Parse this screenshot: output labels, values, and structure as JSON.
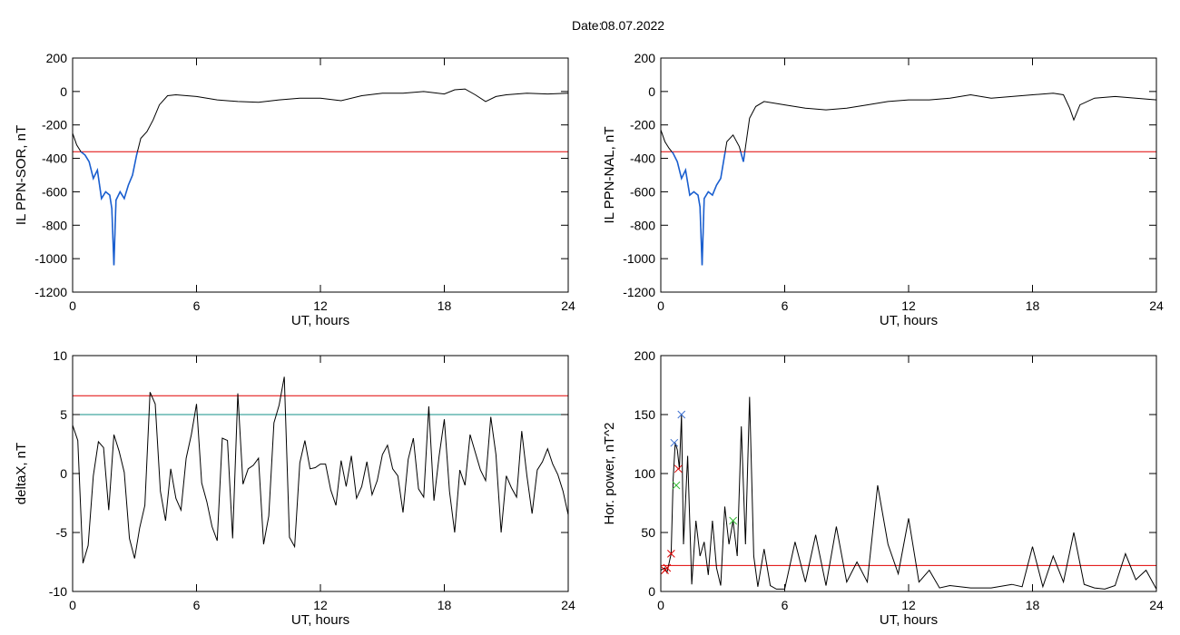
{
  "header": {
    "title_label": "Date:",
    "title_date": "08.07.2022"
  },
  "colors": {
    "axis": "#000000",
    "trace": "#000000",
    "highlight": "#1a5fd0",
    "threshold_red": "#e00000",
    "threshold_teal": "#13928a",
    "marker_blue": "#3b6fd0",
    "marker_green": "#33bb33",
    "marker_red": "#cc2222"
  },
  "chart_data": [
    {
      "id": "il-sor",
      "type": "line",
      "title": "",
      "xlabel": "UT, hours",
      "ylabel": "IL PPN-SOR, nT",
      "xlim": [
        0,
        24
      ],
      "ylim": [
        -1200,
        200
      ],
      "xticks": [
        0,
        6,
        12,
        18,
        24
      ],
      "yticks": [
        200,
        0,
        -200,
        -400,
        -600,
        -800,
        -1000,
        -1200
      ],
      "thresholds": [
        {
          "y": -360,
          "color": "red"
        }
      ],
      "highlight_below": -360,
      "series": [
        {
          "x": [
            0,
            0.2,
            0.4,
            0.6,
            0.8,
            1.0,
            1.2,
            1.4,
            1.6,
            1.8,
            1.9,
            2.0,
            2.1,
            2.3,
            2.5,
            2.7,
            2.9,
            3.1,
            3.3,
            3.6,
            3.9,
            4.2,
            4.6,
            5,
            6,
            7,
            8,
            9,
            10,
            11,
            12,
            13,
            14,
            15,
            16,
            17,
            18,
            18.5,
            19,
            19.5,
            20,
            20.5,
            21,
            22,
            23,
            24
          ],
          "y": [
            -250,
            -320,
            -360,
            -380,
            -420,
            -520,
            -470,
            -640,
            -600,
            -620,
            -700,
            -1040,
            -650,
            -600,
            -640,
            -560,
            -500,
            -380,
            -280,
            -240,
            -170,
            -80,
            -25,
            -20,
            -30,
            -50,
            -60,
            -65,
            -50,
            -40,
            -40,
            -55,
            -25,
            -10,
            -10,
            0,
            -15,
            10,
            15,
            -20,
            -60,
            -30,
            -20,
            -10,
            -15,
            -10
          ]
        }
      ]
    },
    {
      "id": "il-nal",
      "type": "line",
      "title": "",
      "xlabel": "UT, hours",
      "ylabel": "IL PPN-NAL, nT",
      "xlim": [
        0,
        24
      ],
      "ylim": [
        -1200,
        200
      ],
      "xticks": [
        0,
        6,
        12,
        18,
        24
      ],
      "yticks": [
        200,
        0,
        -200,
        -400,
        -600,
        -800,
        -1000,
        -1200
      ],
      "thresholds": [
        {
          "y": -360,
          "color": "red"
        }
      ],
      "highlight_below": -360,
      "series": [
        {
          "x": [
            0,
            0.2,
            0.4,
            0.6,
            0.8,
            1.0,
            1.2,
            1.4,
            1.6,
            1.8,
            1.9,
            2.0,
            2.1,
            2.3,
            2.5,
            2.7,
            2.9,
            3.2,
            3.5,
            3.8,
            4.0,
            4.3,
            4.6,
            5,
            6,
            7,
            8,
            9,
            10,
            11,
            12,
            13,
            14,
            15,
            16,
            17,
            18,
            19,
            19.5,
            19.8,
            20,
            20.3,
            21,
            22,
            23,
            24
          ],
          "y": [
            -230,
            -300,
            -340,
            -370,
            -420,
            -520,
            -470,
            -620,
            -600,
            -620,
            -690,
            -1040,
            -640,
            -600,
            -620,
            -560,
            -520,
            -300,
            -260,
            -330,
            -420,
            -160,
            -90,
            -60,
            -80,
            -100,
            -110,
            -100,
            -80,
            -60,
            -50,
            -50,
            -40,
            -20,
            -40,
            -30,
            -20,
            -10,
            -20,
            -100,
            -170,
            -80,
            -40,
            -30,
            -40,
            -50
          ]
        }
      ]
    },
    {
      "id": "deltax",
      "type": "line",
      "title": "",
      "xlabel": "UT, hours",
      "ylabel": "deltaX, nT",
      "xlim": [
        0,
        24
      ],
      "ylim": [
        -10,
        10
      ],
      "xticks": [
        0,
        6,
        12,
        18,
        24
      ],
      "yticks": [
        10,
        5,
        0,
        -5,
        -10
      ],
      "thresholds": [
        {
          "y": 6.6,
          "color": "red"
        },
        {
          "y": 5.0,
          "color": "teal"
        }
      ],
      "series": [
        {
          "x": [
            0,
            0.25,
            0.5,
            0.75,
            1.0,
            1.25,
            1.5,
            1.75,
            2.0,
            2.25,
            2.5,
            2.75,
            3.0,
            3.25,
            3.5,
            3.75,
            4.0,
            4.25,
            4.5,
            4.75,
            5.0,
            5.25,
            5.5,
            5.75,
            6.0,
            6.25,
            6.5,
            6.75,
            7.0,
            7.25,
            7.5,
            7.75,
            8.0,
            8.25,
            8.5,
            8.75,
            9.0,
            9.25,
            9.5,
            9.75,
            10.0,
            10.25,
            10.5,
            10.75,
            11.0,
            11.25,
            11.5,
            11.75,
            12.0,
            12.25,
            12.5,
            12.75,
            13.0,
            13.25,
            13.5,
            13.75,
            14.0,
            14.25,
            14.5,
            14.75,
            15.0,
            15.25,
            15.5,
            15.75,
            16.0,
            16.25,
            16.5,
            16.75,
            17.0,
            17.25,
            17.5,
            17.75,
            18.0,
            18.25,
            18.5,
            18.75,
            19.0,
            19.25,
            19.5,
            19.75,
            20.0,
            20.25,
            20.5,
            20.75,
            21.0,
            21.25,
            21.5,
            21.75,
            22.0,
            22.25,
            22.5,
            22.75,
            23.0,
            23.25,
            23.5,
            23.75,
            24.0
          ],
          "y": [
            4.1,
            2.8,
            -7.6,
            -6.1,
            -0.2,
            2.7,
            2.2,
            -3.1,
            3.3,
            1.9,
            0.1,
            -5.5,
            -7.2,
            -4.6,
            -2.7,
            6.9,
            5.9,
            -1.5,
            -4.0,
            0.4,
            -2.1,
            -3.1,
            1.3,
            3.3,
            5.9,
            -0.8,
            -2.4,
            -4.5,
            -5.7,
            3.0,
            2.8,
            -5.5,
            6.8,
            -0.9,
            0.4,
            0.7,
            1.3,
            -6.0,
            -3.6,
            4.3,
            5.8,
            8.2,
            -5.4,
            -6.2,
            0.9,
            2.8,
            0.4,
            0.5,
            0.8,
            0.8,
            -1.4,
            -2.7,
            1.1,
            -1.1,
            1.5,
            -2.1,
            -1.1,
            1.0,
            -1.8,
            -0.6,
            1.6,
            2.4,
            0.4,
            -0.2,
            -3.3,
            1.2,
            3.0,
            -1.3,
            -2.0,
            5.7,
            -2.3,
            1.5,
            4.6,
            -1.5,
            -5.0,
            0.3,
            -1.0,
            3.3,
            1.8,
            0.3,
            -0.6,
            4.8,
            1.6,
            -5.0,
            -0.2,
            -1.2,
            -2.0,
            3.6,
            -0.2,
            -3.4,
            0.3,
            1.0,
            2.1,
            0.8,
            -0.1,
            -1.5,
            -3.5
          ]
        }
      ]
    },
    {
      "id": "hor-power",
      "type": "line",
      "title": "",
      "xlabel": "UT, hours",
      "ylabel": "Hor. power, nT^2",
      "xlim": [
        0,
        24
      ],
      "ylim": [
        0,
        200
      ],
      "xticks": [
        0,
        6,
        12,
        18,
        24
      ],
      "yticks": [
        200,
        150,
        100,
        50,
        0
      ],
      "thresholds": [
        {
          "y": 22,
          "color": "red"
        }
      ],
      "markers": [
        {
          "x": 0.2,
          "y": 18,
          "color": "red",
          "symbol": "x"
        },
        {
          "x": 0.3,
          "y": 20,
          "color": "red",
          "symbol": "x"
        },
        {
          "x": 0.5,
          "y": 32,
          "color": "red",
          "symbol": "x"
        },
        {
          "x": 0.65,
          "y": 126,
          "color": "blue",
          "symbol": "x"
        },
        {
          "x": 0.85,
          "y": 104,
          "color": "red",
          "symbol": "x"
        },
        {
          "x": 0.75,
          "y": 90,
          "color": "green",
          "symbol": "x"
        },
        {
          "x": 1.0,
          "y": 150,
          "color": "blue",
          "symbol": "x"
        },
        {
          "x": 3.5,
          "y": 60,
          "color": "green",
          "symbol": "x"
        }
      ],
      "series": [
        {
          "x": [
            0,
            0.2,
            0.3,
            0.5,
            0.6,
            0.7,
            0.8,
            0.9,
            1.0,
            1.1,
            1.3,
            1.5,
            1.7,
            1.9,
            2.1,
            2.3,
            2.5,
            2.7,
            2.9,
            3.1,
            3.3,
            3.5,
            3.7,
            3.9,
            4.1,
            4.3,
            4.5,
            4.7,
            5.0,
            5.3,
            5.6,
            6,
            6.5,
            7,
            7.5,
            8,
            8.5,
            9,
            9.5,
            10,
            10.5,
            11,
            11.5,
            12,
            12.5,
            13,
            13.5,
            14,
            15,
            16,
            17,
            17.5,
            18,
            18.5,
            19,
            19.5,
            20,
            20.5,
            21,
            21.5,
            22,
            22.5,
            23,
            23.5,
            24
          ],
          "y": [
            18,
            20,
            16,
            32,
            95,
            126,
            120,
            104,
            150,
            40,
            115,
            6,
            60,
            30,
            42,
            14,
            60,
            20,
            5,
            72,
            40,
            60,
            30,
            140,
            40,
            165,
            30,
            4,
            36,
            5,
            2,
            2,
            42,
            8,
            48,
            5,
            55,
            8,
            25,
            8,
            90,
            40,
            15,
            62,
            8,
            18,
            3,
            5,
            3,
            3,
            6,
            4,
            38,
            4,
            30,
            8,
            50,
            6,
            3,
            2,
            5,
            32,
            10,
            18,
            2
          ]
        }
      ]
    }
  ]
}
